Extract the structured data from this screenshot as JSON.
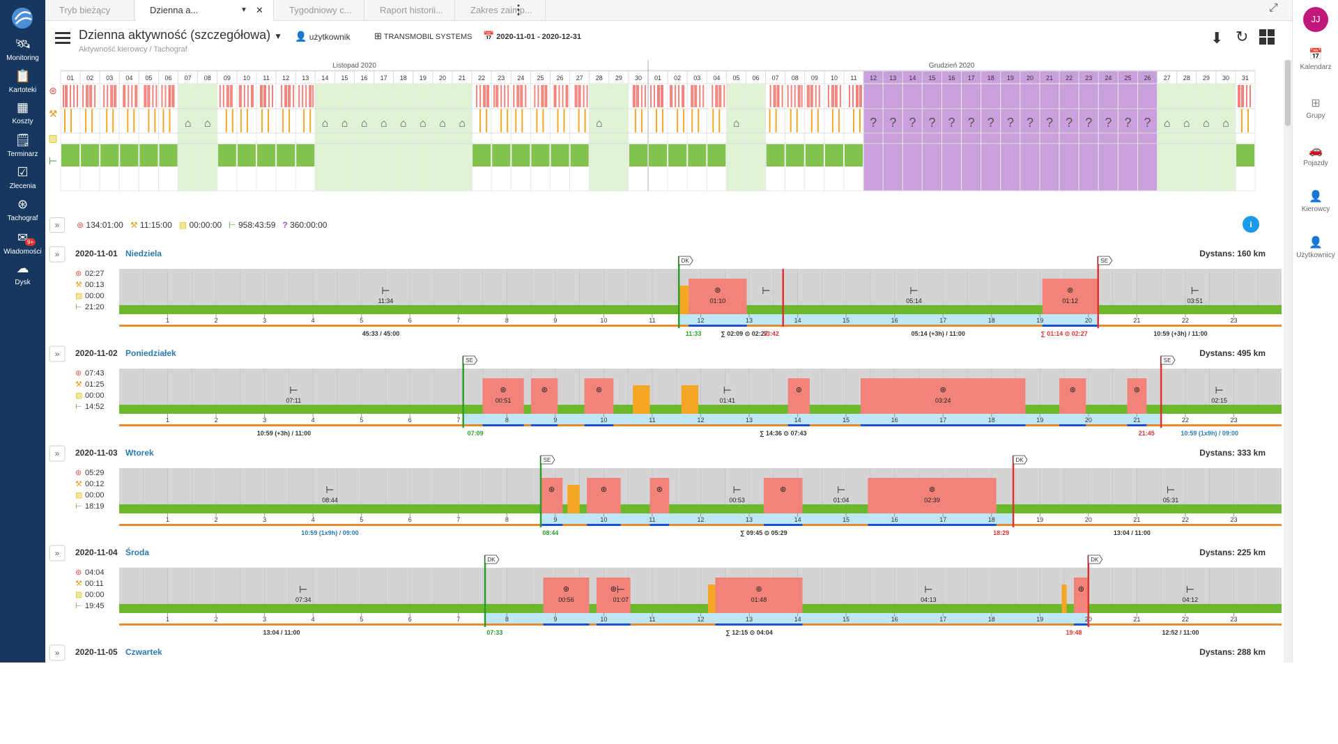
{
  "nav": {
    "items": [
      {
        "label": "Monitoring",
        "icon": "satellite-icon"
      },
      {
        "label": "Kartoteki",
        "icon": "files-icon"
      },
      {
        "label": "Koszty",
        "icon": "grid-icon"
      },
      {
        "label": "Terminarz",
        "icon": "calendar-list-icon"
      },
      {
        "label": "Zlecenia",
        "icon": "clipboard-check-icon"
      },
      {
        "label": "Tachograf",
        "icon": "steering-wheel-icon"
      },
      {
        "label": "Wiadomości",
        "icon": "envelope-icon",
        "badge": "9+"
      },
      {
        "label": "Dysk",
        "icon": "cloud-icon"
      }
    ]
  },
  "right_nav": {
    "avatar": "JJ",
    "items": [
      {
        "label": "Kalendarz",
        "icon": "calendar-icon"
      },
      {
        "label": "Grupy",
        "icon": "sitemap-icon"
      },
      {
        "label": "Pojazdy",
        "icon": "car-icon"
      },
      {
        "label": "Kierowcy",
        "icon": "driver-icon"
      },
      {
        "label": "Użytkownicy",
        "icon": "user-icon"
      }
    ]
  },
  "tabs": [
    "Tryb bieżący",
    "Dzienna a...",
    "Tygodniowy c...",
    "Raport historii...",
    "Zakres zaimp..."
  ],
  "header": {
    "title": "Dzienna aktywność (szczegółowa)",
    "breadcrumb": "Aktywność kierowcy  /  Tachograf",
    "user": "użytkownik",
    "company": "TRANSMOBIL SYSTEMS",
    "date_range": "2020-11-01 - 2020-12-31"
  },
  "calendar": {
    "month1": "Listopad 2020",
    "month2": "Grudzień 2020",
    "days": [
      "01",
      "02",
      "03",
      "04",
      "05",
      "06",
      "07",
      "08",
      "09",
      "10",
      "11",
      "12",
      "13",
      "14",
      "15",
      "16",
      "17",
      "18",
      "19",
      "20",
      "21",
      "22",
      "23",
      "24",
      "25",
      "26",
      "27",
      "28",
      "29",
      "30",
      "01",
      "02",
      "03",
      "04",
      "05",
      "06",
      "07",
      "08",
      "09",
      "10",
      "11",
      "12",
      "13",
      "14",
      "15",
      "16",
      "17",
      "18",
      "19",
      "20",
      "21",
      "22",
      "23",
      "24",
      "25",
      "26",
      "27",
      "28",
      "29",
      "30",
      "31"
    ],
    "weekend": [
      6,
      7,
      13,
      14,
      15,
      16,
      17,
      18,
      19,
      20,
      27,
      28,
      34,
      35,
      56,
      57,
      58,
      59
    ],
    "unknown": [
      41,
      42,
      43,
      44,
      45,
      46,
      47,
      48,
      49,
      50,
      51,
      52,
      53,
      54,
      55
    ],
    "home": [
      6,
      7,
      13,
      14,
      15,
      16,
      17,
      18,
      19,
      20,
      27,
      34,
      56,
      57,
      58,
      59
    ]
  },
  "totals": {
    "driving": "134:01:00",
    "work": "11:15:00",
    "available": "00:00:00",
    "rest": "958:43:59",
    "unknown": "360:00:00"
  },
  "colors": {
    "driving": "#f2837b",
    "work": "#f5a623",
    "available": "#f5e03c",
    "rest": "#6bb82d",
    "unknown": "#c9a0dc",
    "nav": "#16385f"
  },
  "days": [
    {
      "date": "2020-11-01",
      "weekday": "Niedziela",
      "distance": "Dystans: 160 km",
      "totals": [
        "02:27",
        "00:13",
        "00:00",
        "21:20"
      ],
      "rest_labels": [
        {
          "h": 5.5,
          "t": "11:34"
        },
        {
          "h": 13.35,
          "t": ""
        },
        {
          "h": 16.4,
          "t": "05:14"
        },
        {
          "h": 22.2,
          "t": "03:51"
        }
      ],
      "drive_blocks": [
        {
          "s": 11.75,
          "e": 12.95,
          "t": "01:10"
        },
        {
          "s": 19.05,
          "e": 20.2,
          "t": "01:12"
        }
      ],
      "work_blocks": [
        {
          "s": 11.55,
          "e": 11.75
        }
      ],
      "marker_start": {
        "h": 11.55,
        "t": "DK"
      },
      "marker_end": {
        "h": 20.2,
        "t": "SE"
      },
      "red_line": 13.7,
      "bottom": [
        {
          "h": 5.4,
          "t": "45:33 / 45:00",
          "c": "#333"
        },
        {
          "h": 11.85,
          "t": "11:33",
          "c": "#2a9d2a"
        },
        {
          "h": 12.9,
          "t": "∑ 02:09 ⊙ 02:27",
          "c": "#333"
        },
        {
          "h": 13.45,
          "t": "13:42",
          "c": "#e03030"
        },
        {
          "h": 16.9,
          "t": "05:14 (+3h) / 11:00",
          "c": "#333"
        },
        {
          "h": 19.5,
          "t": "∑ 01:14 ⊙ 02:27",
          "c": "#e03030"
        },
        {
          "h": 21.9,
          "t": "10:59 (+3h) / 11:00",
          "c": "#333"
        }
      ]
    },
    {
      "date": "2020-11-02",
      "weekday": "Poniedziałek",
      "distance": "Dystans: 495 km",
      "totals": [
        "07:43",
        "01:25",
        "00:00",
        "14:52"
      ],
      "rest_labels": [
        {
          "h": 3.6,
          "t": "07:11"
        },
        {
          "h": 12.55,
          "t": "01:41"
        },
        {
          "h": 22.7,
          "t": "02:15"
        }
      ],
      "drive_blocks": [
        {
          "s": 7.5,
          "e": 8.35,
          "t": "00:51"
        },
        {
          "s": 8.5,
          "e": 9.05,
          "t": ""
        },
        {
          "s": 9.6,
          "e": 10.2,
          "t": ""
        },
        {
          "s": 13.8,
          "e": 14.25,
          "t": ""
        },
        {
          "s": 15.3,
          "e": 18.7,
          "t": "03:24"
        },
        {
          "s": 19.4,
          "e": 19.95,
          "t": ""
        },
        {
          "s": 20.8,
          "e": 21.2,
          "t": ""
        }
      ],
      "work_blocks": [
        {
          "s": 10.6,
          "e": 10.95
        },
        {
          "s": 11.6,
          "e": 11.95
        }
      ],
      "marker_start": {
        "h": 7.1,
        "t": "SE"
      },
      "marker_end": {
        "h": 21.5,
        "t": "SE"
      },
      "red_line": null,
      "bottom": [
        {
          "h": 3.4,
          "t": "10:59 (+3h) / 11:00",
          "c": "#333"
        },
        {
          "h": 7.35,
          "t": "07:09",
          "c": "#2a9d2a"
        },
        {
          "h": 13.7,
          "t": "∑ 14:36 ⊙ 07:43",
          "c": "#333"
        },
        {
          "h": 21.2,
          "t": "21:45",
          "c": "#e03030"
        },
        {
          "h": 22.5,
          "t": "10:59 (1x9h) / 09:00",
          "c": "#2a7ab0"
        }
      ]
    },
    {
      "date": "2020-11-03",
      "weekday": "Wtorek",
      "distance": "Dystans: 333 km",
      "totals": [
        "05:29",
        "00:12",
        "00:00",
        "18:19"
      ],
      "rest_labels": [
        {
          "h": 4.35,
          "t": "08:44"
        },
        {
          "h": 12.75,
          "t": "00:53"
        },
        {
          "h": 14.9,
          "t": "01:04"
        },
        {
          "h": 21.7,
          "t": "05:31"
        }
      ],
      "drive_blocks": [
        {
          "s": 8.7,
          "e": 9.15,
          "t": ""
        },
        {
          "s": 9.65,
          "e": 10.35,
          "t": ""
        },
        {
          "s": 10.95,
          "e": 11.35,
          "t": ""
        },
        {
          "s": 13.3,
          "e": 14.1,
          "t": ""
        },
        {
          "s": 15.45,
          "e": 18.1,
          "t": "02:39"
        }
      ],
      "work_blocks": [
        {
          "s": 9.25,
          "e": 9.5
        }
      ],
      "marker_start": {
        "h": 8.7,
        "t": "SE"
      },
      "marker_end": {
        "h": 18.45,
        "t": "DK"
      },
      "red_line": null,
      "bottom": [
        {
          "h": 4.35,
          "t": "10:59 (1x9h) / 09:00",
          "c": "#2a7ab0"
        },
        {
          "h": 8.9,
          "t": "08:44",
          "c": "#2a9d2a"
        },
        {
          "h": 13.3,
          "t": "∑ 09:45 ⊙ 05:29",
          "c": "#333"
        },
        {
          "h": 18.2,
          "t": "18:29",
          "c": "#e03030"
        },
        {
          "h": 20.9,
          "t": "13:04 / 11:00",
          "c": "#333"
        }
      ]
    },
    {
      "date": "2020-11-04",
      "weekday": "Środa",
      "distance": "Dystans: 225 km",
      "totals": [
        "04:04",
        "00:11",
        "00:00",
        "19:45"
      ],
      "rest_labels": [
        {
          "h": 3.8,
          "t": "07:34"
        },
        {
          "h": 10.35,
          "t": "01:07"
        },
        {
          "h": 16.7,
          "t": "04:13"
        },
        {
          "h": 22.1,
          "t": "04:12"
        }
      ],
      "drive_blocks": [
        {
          "s": 8.75,
          "e": 9.7,
          "t": "00:56"
        },
        {
          "s": 9.85,
          "e": 10.55,
          "t": ""
        },
        {
          "s": 12.3,
          "e": 14.1,
          "t": "01:48"
        },
        {
          "s": 19.7,
          "e": 20.0,
          "t": ""
        }
      ],
      "work_blocks": [
        {
          "s": 12.15,
          "e": 12.3
        },
        {
          "s": 19.45,
          "e": 19.55
        }
      ],
      "marker_start": {
        "h": 7.55,
        "t": "DK"
      },
      "marker_end": {
        "h": 20.0,
        "t": "DK"
      },
      "red_line": null,
      "bottom": [
        {
          "h": 3.35,
          "t": "13:04 / 11:00",
          "c": "#333"
        },
        {
          "h": 7.75,
          "t": "07:33",
          "c": "#2a9d2a"
        },
        {
          "h": 13.0,
          "t": "∑ 12:15 ⊙ 04:04",
          "c": "#333"
        },
        {
          "h": 19.7,
          "t": "19:48",
          "c": "#e03030"
        },
        {
          "h": 21.9,
          "t": "12:52 / 11:00",
          "c": "#333"
        }
      ]
    },
    {
      "date": "2020-11-05",
      "weekday": "Czwartek",
      "distance": "Dystans: 288 km"
    }
  ]
}
